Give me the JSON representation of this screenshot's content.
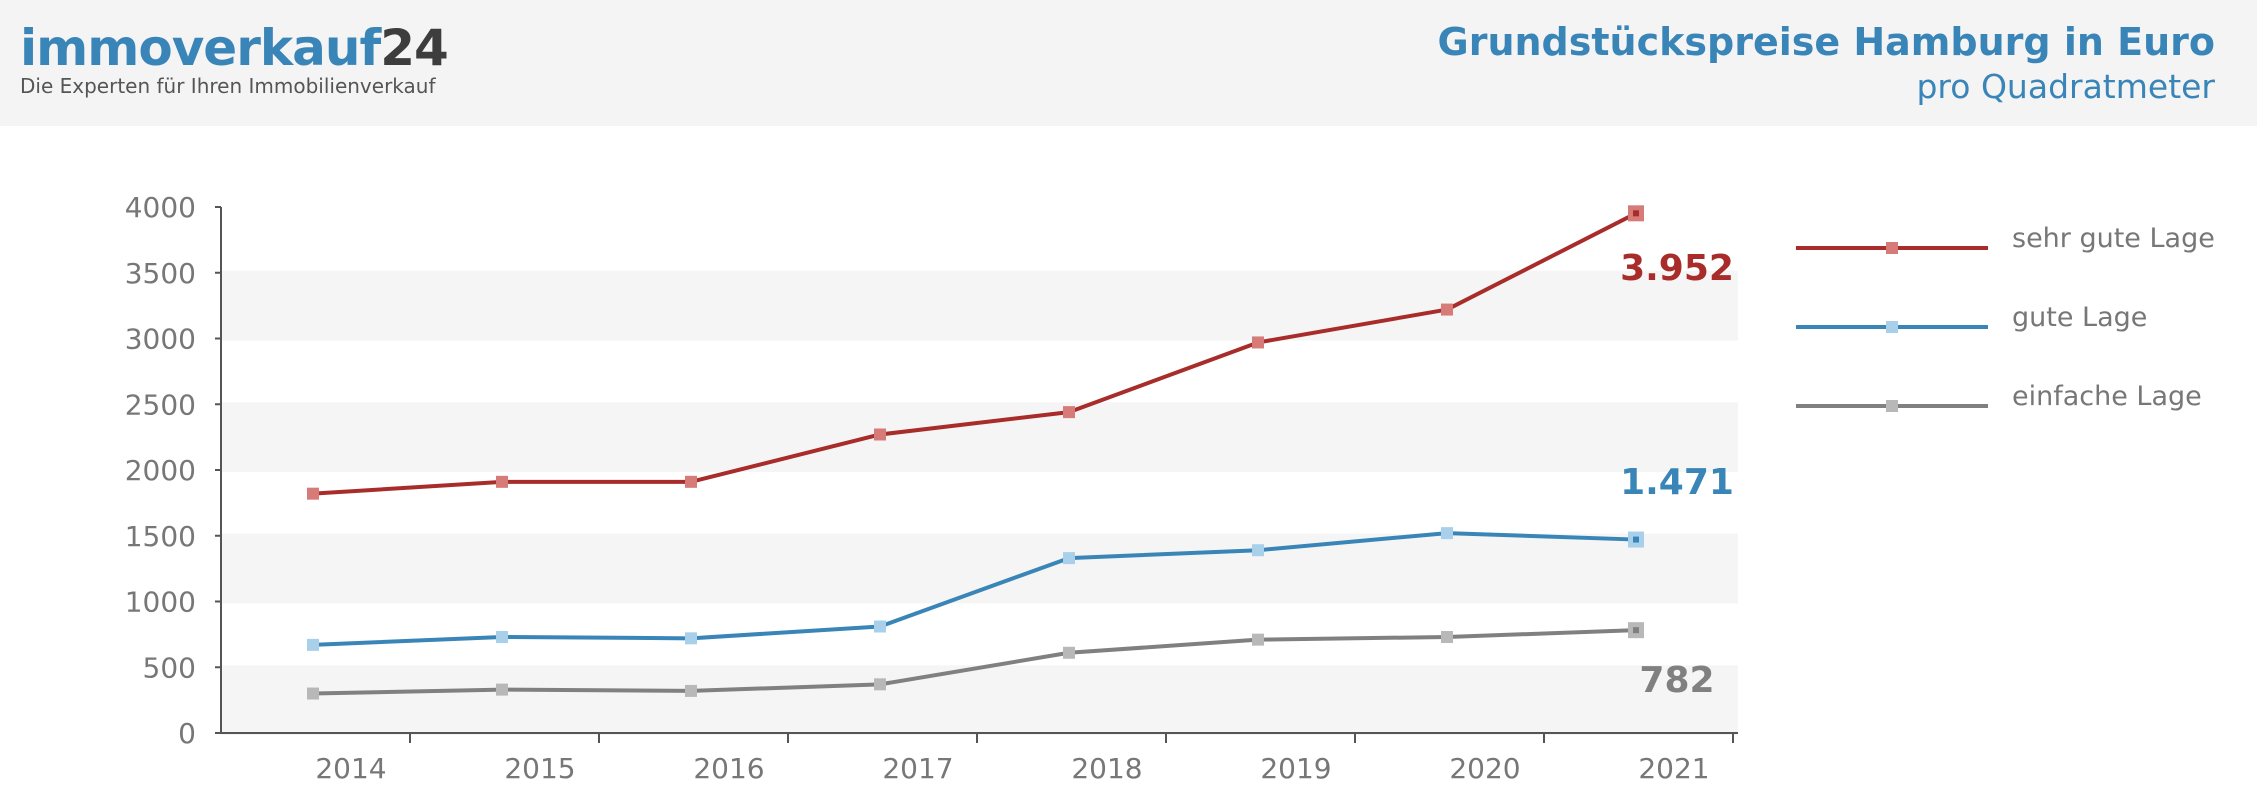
{
  "header": {
    "logo_word": "immoverkauf",
    "logo_number": "24",
    "logo_tagline": "Die Experten für Ihren Immobilienverkauf",
    "title": "Grundstückspreise Hamburg in Euro",
    "subtitle": "pro Quadratmeter"
  },
  "colors": {
    "brand_blue": "#3a85b8",
    "logo_dark": "#3d3d3d",
    "series_red": "#a82d2a",
    "series_blue": "#3a85b8",
    "series_gray": "#808080",
    "band": "#f5f5f6"
  },
  "chart_data": {
    "type": "line",
    "title": "Grundstückspreise Hamburg in Euro",
    "subtitle": "pro Quadratmeter",
    "xlabel": "",
    "ylabel": "",
    "categories": [
      "2014",
      "2015",
      "2016",
      "2017",
      "2018",
      "2019",
      "2020",
      "2021"
    ],
    "ylim": [
      0,
      4000
    ],
    "yticks": [
      "0",
      "500",
      "1000",
      "1500",
      "2000",
      "2500",
      "3000",
      "3500",
      "4000"
    ],
    "legend_position": "right",
    "grid": "alternating horizontal bands",
    "series": [
      {
        "name": "sehr gute Lage",
        "color": "#a82d2a",
        "marker_color": "#d77b78",
        "values": [
          1820,
          1910,
          1910,
          2270,
          2440,
          2970,
          3220,
          3952
        ],
        "end_label": "3.952"
      },
      {
        "name": "gute Lage",
        "color": "#3a85b8",
        "marker_color": "#a8d0ea",
        "values": [
          670,
          730,
          720,
          810,
          1330,
          1390,
          1520,
          1471
        ],
        "end_label": "1.471"
      },
      {
        "name": "einfache Lage",
        "color": "#808080",
        "marker_color": "#b8b8b8",
        "values": [
          300,
          330,
          320,
          370,
          610,
          710,
          730,
          782
        ],
        "end_label": "782"
      }
    ]
  }
}
